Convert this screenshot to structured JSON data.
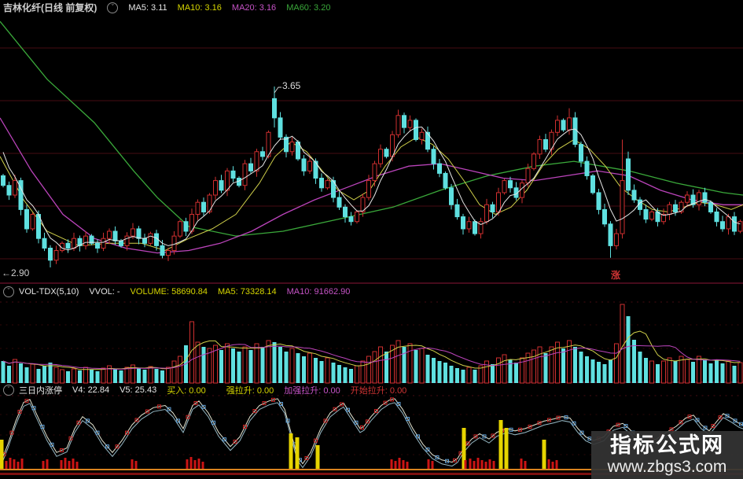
{
  "window": {
    "app": "股票行情软件",
    "period_note": "日线 前复权"
  },
  "colors": {
    "bg": "#000000",
    "grid": "#460d12",
    "sep": "#5d0f26",
    "up": "#cf2f2f",
    "down": "#5fe0e0",
    "ma5": "#e6e6e6",
    "ma10": "#cfcf4a",
    "ma20": "#bb44bb",
    "ma60": "#3aa83a",
    "text": "#cfcfcf",
    "yellow": "#d6d600",
    "magenta": "#c653c6",
    "red": "#d03434",
    "vol_ma5": "#cfcf4a",
    "vol_ma10": "#bb44bb",
    "osc1": "#e4e4d0",
    "osc2": "#96b8c4",
    "mark_up": "#cc2626",
    "mark_dn": "#5f9fd6",
    "bar_red": "#cc1414",
    "bar_yellow": "#e6d400",
    "orange": "#d9831f",
    "baseline": "#7d1010"
  },
  "main_header": {
    "title": "吉林化纤(日线 前复权)",
    "ma5": "MA5: 3.11",
    "ma10": "MA10: 3.16",
    "ma20": "MA20: 3.16",
    "ma60": "MA60: 3.20"
  },
  "volume_header": {
    "name": "VOL-TDX(5,10)",
    "vvol": "VVOL: -",
    "volume": "VOLUME: 58690.84",
    "ma5": "MA5: 73328.14",
    "ma10": "MA10: 91662.90"
  },
  "indicator_header": {
    "name": "三日内涨停",
    "v4": "V4: 22.84",
    "v5": "V5: 25.43",
    "buy": "买入: 0.00",
    "strong": "强拉升: 0.00",
    "stronger": "加强拉升: 0.00",
    "start": "开始拉升: 0.00"
  },
  "annotations": {
    "high": "3.65",
    "low": "←2.90",
    "rise_marker": "涨"
  },
  "watermark": {
    "line1": "指标公式网",
    "line2": "www.zbgs3.com"
  },
  "chart_data": [
    {
      "type": "candlestick",
      "title": "吉林化纤 日线 前复权",
      "ylim": [
        2.85,
        3.95
      ],
      "grid": true,
      "high_annotation": 3.65,
      "low_annotation": 2.9,
      "first_open": 3.28,
      "pre_closes": [
        3.52,
        3.45,
        3.38,
        3.3
      ],
      "closes": [
        3.24,
        3.2,
        3.26,
        3.14,
        3.06,
        3.12,
        3.02,
        2.98,
        2.93,
        2.97,
        3.0,
        2.98,
        3.02,
        2.99,
        3.03,
        3.0,
        2.98,
        3.02,
        3.05,
        3.01,
        2.99,
        3.03,
        3.06,
        3.02,
        3.0,
        3.04,
        2.99,
        2.95,
        2.97,
        3.03,
        3.09,
        3.05,
        3.12,
        3.17,
        3.13,
        3.2,
        3.26,
        3.22,
        3.3,
        3.27,
        3.24,
        3.33,
        3.3,
        3.38,
        3.36,
        3.46,
        3.52,
        3.44,
        3.38,
        3.42,
        3.35,
        3.3,
        3.34,
        3.27,
        3.23,
        3.26,
        3.19,
        3.15,
        3.11,
        3.09,
        3.13,
        3.19,
        3.26,
        3.33,
        3.39,
        3.36,
        3.45,
        3.53,
        3.48,
        3.51,
        3.43,
        3.46,
        3.39,
        3.33,
        3.29,
        3.23,
        3.16,
        3.11,
        3.06,
        3.09,
        3.04,
        3.09,
        3.16,
        3.13,
        3.21,
        3.26,
        3.23,
        3.19,
        3.25,
        3.31,
        3.37,
        3.43,
        3.39,
        3.46,
        3.51,
        3.47,
        3.52,
        3.41,
        3.34,
        3.28,
        3.21,
        3.14,
        3.08,
        2.99,
        3.04,
        3.26,
        3.22,
        3.18,
        3.14,
        3.1,
        3.13,
        3.09,
        3.12,
        3.16,
        3.13,
        3.17,
        3.2,
        3.16,
        3.21,
        3.17,
        3.13,
        3.09,
        3.06,
        3.11,
        3.05,
        3.09
      ],
      "overrides": {
        "8": {
          "l": 2.9
        },
        "46": {
          "o": 3.6,
          "h": 3.65,
          "l": 3.48
        },
        "96": {
          "h": 3.56
        },
        "103": {
          "l": 2.94
        },
        "105": {
          "h": 3.43,
          "l": 3.02
        },
        "106": {
          "o": 3.35,
          "h": 3.38
        }
      },
      "ma10_path": [
        [
          0,
          3.36
        ],
        [
          30,
          3.18
        ],
        [
          60,
          3.05
        ],
        [
          100,
          2.99
        ],
        [
          140,
          3.0
        ],
        [
          180,
          3.0
        ],
        [
          210,
          2.97
        ],
        [
          240,
          3.02
        ],
        [
          270,
          3.06
        ],
        [
          300,
          3.12
        ],
        [
          330,
          3.25
        ],
        [
          350,
          3.36
        ],
        [
          370,
          3.42
        ],
        [
          390,
          3.38
        ],
        [
          410,
          3.3
        ],
        [
          430,
          3.22
        ],
        [
          450,
          3.18
        ],
        [
          470,
          3.22
        ],
        [
          490,
          3.32
        ],
        [
          510,
          3.4
        ],
        [
          530,
          3.44
        ],
        [
          550,
          3.41
        ],
        [
          570,
          3.35
        ],
        [
          590,
          3.26
        ],
        [
          610,
          3.16
        ],
        [
          630,
          3.12
        ],
        [
          650,
          3.15
        ],
        [
          670,
          3.22
        ],
        [
          690,
          3.32
        ],
        [
          710,
          3.39
        ],
        [
          730,
          3.43
        ],
        [
          750,
          3.39
        ],
        [
          770,
          3.32
        ],
        [
          790,
          3.23
        ],
        [
          810,
          3.18
        ],
        [
          830,
          3.14
        ],
        [
          850,
          3.13
        ],
        [
          870,
          3.15
        ],
        [
          890,
          3.17
        ],
        [
          910,
          3.16
        ],
        [
          930,
          3.14
        ],
        [
          945,
          3.16
        ]
      ],
      "ma20_path": [
        [
          0,
          3.52
        ],
        [
          40,
          3.3
        ],
        [
          80,
          3.12
        ],
        [
          120,
          3.02
        ],
        [
          160,
          2.98
        ],
        [
          200,
          2.96
        ],
        [
          240,
          2.97
        ],
        [
          280,
          3.0
        ],
        [
          320,
          3.05
        ],
        [
          360,
          3.12
        ],
        [
          400,
          3.18
        ],
        [
          440,
          3.23
        ],
        [
          480,
          3.28
        ],
        [
          520,
          3.32
        ],
        [
          560,
          3.33
        ],
        [
          600,
          3.3
        ],
        [
          640,
          3.27
        ],
        [
          680,
          3.26
        ],
        [
          720,
          3.28
        ],
        [
          760,
          3.3
        ],
        [
          800,
          3.28
        ],
        [
          840,
          3.22
        ],
        [
          880,
          3.18
        ],
        [
          920,
          3.16
        ],
        [
          945,
          3.16
        ]
      ],
      "ma60_path": [
        [
          0,
          3.92
        ],
        [
          60,
          3.68
        ],
        [
          120,
          3.5
        ],
        [
          170,
          3.3
        ],
        [
          200,
          3.19
        ],
        [
          240,
          3.07
        ],
        [
          300,
          3.03
        ],
        [
          360,
          3.05
        ],
        [
          430,
          3.1
        ],
        [
          500,
          3.15
        ],
        [
          560,
          3.22
        ],
        [
          620,
          3.28
        ],
        [
          680,
          3.32
        ],
        [
          730,
          3.34
        ],
        [
          800,
          3.3
        ],
        [
          860,
          3.25
        ],
        [
          920,
          3.21
        ],
        [
          945,
          3.2
        ]
      ]
    },
    {
      "type": "bar",
      "title": "VOL-TDX 成交量",
      "ma_periods": [
        5,
        10
      ],
      "values": [
        0.28,
        0.22,
        0.3,
        0.25,
        0.2,
        0.24,
        0.18,
        0.22,
        0.26,
        0.2,
        0.17,
        0.15,
        0.18,
        0.16,
        0.2,
        0.17,
        0.15,
        0.19,
        0.22,
        0.18,
        0.16,
        0.2,
        0.23,
        0.19,
        0.17,
        0.21,
        0.18,
        0.16,
        0.2,
        0.28,
        0.34,
        0.48,
        0.78,
        0.52,
        0.46,
        0.44,
        0.48,
        0.42,
        0.5,
        0.44,
        0.4,
        0.46,
        0.42,
        0.5,
        0.46,
        0.54,
        0.52,
        0.46,
        0.4,
        0.44,
        0.38,
        0.34,
        0.38,
        0.32,
        0.28,
        0.32,
        0.26,
        0.23,
        0.2,
        0.18,
        0.22,
        0.28,
        0.34,
        0.4,
        0.46,
        0.4,
        0.48,
        0.54,
        0.46,
        0.5,
        0.42,
        0.44,
        0.36,
        0.32,
        0.28,
        0.26,
        0.22,
        0.19,
        0.17,
        0.2,
        0.17,
        0.22,
        0.28,
        0.24,
        0.32,
        0.36,
        0.3,
        0.26,
        0.32,
        0.38,
        0.42,
        0.46,
        0.38,
        0.46,
        0.52,
        0.44,
        0.54,
        0.46,
        0.4,
        0.34,
        0.3,
        0.27,
        0.24,
        0.3,
        0.5,
        1.0,
        0.85,
        0.55,
        0.4,
        0.32,
        0.28,
        0.24,
        0.28,
        0.32,
        0.28,
        0.34,
        0.3,
        0.27,
        0.34,
        0.29,
        0.25,
        0.3,
        0.25,
        0.28,
        0.22,
        0.26
      ]
    },
    {
      "type": "line",
      "title": "三日内涨停 指标",
      "value_range": [
        0,
        100
      ],
      "line": [
        [
          0,
          10
        ],
        [
          10,
          37
        ],
        [
          20,
          68
        ],
        [
          30,
          93
        ],
        [
          38,
          97
        ],
        [
          48,
          74
        ],
        [
          60,
          47
        ],
        [
          72,
          26
        ],
        [
          85,
          32
        ],
        [
          95,
          58
        ],
        [
          105,
          74
        ],
        [
          118,
          63
        ],
        [
          130,
          42
        ],
        [
          143,
          26
        ],
        [
          155,
          42
        ],
        [
          168,
          63
        ],
        [
          180,
          76
        ],
        [
          195,
          86
        ],
        [
          210,
          89
        ],
        [
          220,
          79
        ],
        [
          233,
          58
        ],
        [
          245,
          89
        ],
        [
          253,
          95
        ],
        [
          265,
          79
        ],
        [
          278,
          53
        ],
        [
          293,
          34
        ],
        [
          305,
          47
        ],
        [
          318,
          74
        ],
        [
          330,
          89
        ],
        [
          342,
          95
        ],
        [
          353,
          98
        ],
        [
          362,
          84
        ],
        [
          370,
          53
        ],
        [
          378,
          21
        ],
        [
          385,
          11
        ],
        [
          395,
          26
        ],
        [
          408,
          58
        ],
        [
          420,
          79
        ],
        [
          432,
          89
        ],
        [
          437,
          92
        ],
        [
          448,
          74
        ],
        [
          458,
          58
        ],
        [
          463,
          61
        ],
        [
          472,
          74
        ],
        [
          485,
          89
        ],
        [
          495,
          96
        ],
        [
          502,
          98
        ],
        [
          512,
          84
        ],
        [
          525,
          58
        ],
        [
          538,
          37
        ],
        [
          550,
          23
        ],
        [
          562,
          16
        ],
        [
          575,
          13
        ],
        [
          582,
          18
        ],
        [
          590,
          32
        ],
        [
          600,
          44
        ],
        [
          610,
          51
        ],
        [
          622,
          44
        ],
        [
          632,
          53
        ],
        [
          645,
          58
        ],
        [
          655,
          55
        ],
        [
          668,
          58
        ],
        [
          680,
          63
        ],
        [
          692,
          68
        ],
        [
          705,
          71
        ],
        [
          715,
          74
        ],
        [
          725,
          72
        ],
        [
          735,
          58
        ],
        [
          745,
          47
        ],
        [
          755,
          42
        ],
        [
          768,
          47
        ],
        [
          780,
          61
        ],
        [
          792,
          65
        ],
        [
          800,
          58
        ],
        [
          810,
          47
        ],
        [
          822,
          42
        ],
        [
          835,
          44
        ],
        [
          848,
          53
        ],
        [
          860,
          61
        ],
        [
          872,
          72
        ],
        [
          882,
          76
        ],
        [
          892,
          63
        ],
        [
          902,
          55
        ],
        [
          912,
          68
        ],
        [
          920,
          78
        ],
        [
          930,
          72
        ],
        [
          940,
          65
        ],
        [
          945,
          63
        ]
      ],
      "red_bars": [
        [
          8,
          10
        ],
        [
          13,
          14
        ],
        [
          18,
          12
        ],
        [
          23,
          9
        ],
        [
          28,
          13
        ],
        [
          55,
          10
        ],
        [
          60,
          12
        ],
        [
          78,
          11
        ],
        [
          83,
          14
        ],
        [
          88,
          10
        ],
        [
          93,
          13
        ],
        [
          98,
          9
        ],
        [
          168,
          12
        ],
        [
          173,
          10
        ],
        [
          238,
          12
        ],
        [
          243,
          15
        ],
        [
          248,
          11
        ],
        [
          253,
          13
        ],
        [
          258,
          9
        ],
        [
          498,
          12
        ],
        [
          503,
          10
        ],
        [
          508,
          14
        ],
        [
          513,
          11
        ],
        [
          518,
          9
        ],
        [
          545,
          12
        ],
        [
          550,
          10
        ],
        [
          592,
          11
        ],
        [
          598,
          13
        ],
        [
          603,
          10
        ],
        [
          608,
          14
        ],
        [
          613,
          11
        ],
        [
          618,
          9
        ],
        [
          623,
          12
        ],
        [
          628,
          10
        ],
        [
          663,
          13
        ],
        [
          668,
          10
        ],
        [
          698,
          12
        ],
        [
          703,
          9
        ],
        [
          708,
          11
        ]
      ],
      "yellow_bars": [
        [
          2,
          37
        ],
        [
          370,
          45
        ],
        [
          378,
          40
        ],
        [
          404,
          30
        ],
        [
          590,
          52
        ],
        [
          637,
          62
        ],
        [
          644,
          52
        ],
        [
          692,
          37
        ]
      ]
    }
  ]
}
